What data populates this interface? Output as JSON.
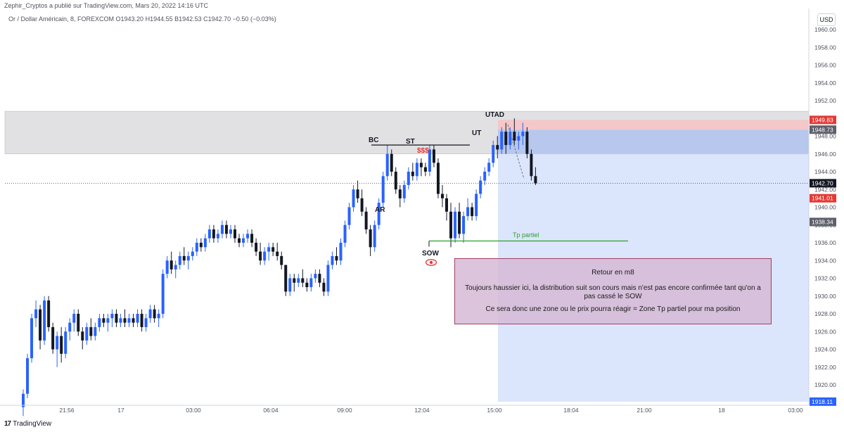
{
  "header": {
    "published_by": "Zephir_Cryptos a publié sur TradingView.com, Mars 20, 2022 14:16 UTC",
    "symbol_line": "Or / Dollar Américain, 8, FOREXCOM  O1943.20  H1944.55  B1942.53  C1942.70  −0.50 (−0.03%)",
    "currency": "USD"
  },
  "footer": {
    "logo_text": "TradingView",
    "logo_mark": "17"
  },
  "note": {
    "title": "Retour en m8",
    "line1": "Toujours haussier ici, la distribution suit son cours mais n'est pas encore confirmée tant qu'on a pas cassé le SOW",
    "line2": "Ce sera donc une zone ou le prix pourra réagir = Zone Tp partiel pour ma position"
  },
  "colors": {
    "up": "#2962ff",
    "down": "#131722",
    "resistance_zone": "#e1e1e3",
    "position_blue": "#cfdcfb",
    "stop_red": "#f4c7c9",
    "tp_line": "#2ca02c",
    "price_badge_red": "#e53935",
    "price_badge_dark": "#131722",
    "price_badge_grey": "#5d606b"
  },
  "chart_data": {
    "type": "candlestick",
    "ylim": [
      1918,
      1961.5
    ],
    "y_ticks": [
      1920,
      1922,
      1924,
      1926,
      1928,
      1930,
      1932,
      1934,
      1936,
      1938,
      1940,
      1942,
      1944,
      1946,
      1948,
      1950,
      1952,
      1954,
      1956,
      1958,
      1960
    ],
    "x_ticks": [
      "21:56",
      "17",
      "03:00",
      "06:04",
      "09:00",
      "12:04",
      "15:00",
      "18:04",
      "21:00",
      "18",
      "03:00"
    ],
    "last_price": 1942.7,
    "price_markers": [
      {
        "value": 1949.83,
        "label": "1949.83",
        "style": "red"
      },
      {
        "value": 1948.73,
        "label": "1948.73",
        "style": "grey"
      },
      {
        "value": 1942.7,
        "label": "1942.70",
        "style": "dark"
      },
      {
        "value": 1941.01,
        "label": "1941.01",
        "style": "red"
      },
      {
        "value": 1938.34,
        "label": "1938.34",
        "style": "grey"
      },
      {
        "value": 1918.11,
        "label": "1918.11",
        "style": "blue"
      }
    ],
    "zones": {
      "resistance": [
        1946.0,
        1950.8
      ],
      "position_entry": 1948.73,
      "position_stop": 1949.83,
      "position_target": 1918.11,
      "tp_partiel": 1936.2,
      "bc_level": 1947.0
    },
    "annotations": [
      {
        "text": "BC",
        "color": "#131722"
      },
      {
        "text": "ST",
        "color": "#131722"
      },
      {
        "text": "$$$",
        "color": "#e53935"
      },
      {
        "text": "UT",
        "color": "#131722"
      },
      {
        "text": "UTAD",
        "color": "#131722"
      },
      {
        "text": "AR",
        "color": "#131722"
      },
      {
        "text": "SOW",
        "color": "#131722"
      },
      {
        "text": "Tp partiel",
        "color": "#2ca02c"
      }
    ],
    "candles": [
      [
        1917.5,
        1919.5,
        1916.5,
        1919.0
      ],
      [
        1919.0,
        1923.5,
        1918.5,
        1923.0
      ],
      [
        1923.0,
        1928.0,
        1922.5,
        1927.5
      ],
      [
        1927.5,
        1929.5,
        1926.5,
        1928.5
      ],
      [
        1928.5,
        1929.0,
        1924.0,
        1925.0
      ],
      [
        1925.0,
        1930.0,
        1924.5,
        1929.5
      ],
      [
        1929.5,
        1930.0,
        1926.0,
        1926.5
      ],
      [
        1926.5,
        1927.0,
        1923.5,
        1924.0
      ],
      [
        1924.0,
        1926.0,
        1922.0,
        1925.5
      ],
      [
        1925.5,
        1926.5,
        1922.5,
        1923.5
      ],
      [
        1923.5,
        1926.5,
        1923.0,
        1926.0
      ],
      [
        1926.0,
        1927.5,
        1925.0,
        1927.0
      ],
      [
        1927.0,
        1928.5,
        1926.0,
        1928.0
      ],
      [
        1928.0,
        1928.5,
        1925.5,
        1926.0
      ],
      [
        1926.0,
        1926.5,
        1924.0,
        1925.0
      ],
      [
        1925.0,
        1927.0,
        1924.5,
        1926.5
      ],
      [
        1926.5,
        1927.5,
        1925.0,
        1925.5
      ],
      [
        1925.5,
        1927.0,
        1925.0,
        1926.5
      ],
      [
        1926.5,
        1928.0,
        1926.0,
        1927.5
      ],
      [
        1927.5,
        1928.0,
        1926.5,
        1927.0
      ],
      [
        1927.0,
        1928.0,
        1926.0,
        1927.5
      ],
      [
        1927.5,
        1928.5,
        1926.5,
        1928.0
      ],
      [
        1928.0,
        1928.5,
        1926.5,
        1927.0
      ],
      [
        1927.0,
        1928.0,
        1926.5,
        1927.5
      ],
      [
        1927.5,
        1928.5,
        1926.5,
        1927.0
      ],
      [
        1927.0,
        1928.0,
        1926.5,
        1927.5
      ],
      [
        1927.5,
        1928.0,
        1926.5,
        1927.0
      ],
      [
        1927.0,
        1928.5,
        1926.5,
        1928.0
      ],
      [
        1928.0,
        1928.5,
        1926.0,
        1926.5
      ],
      [
        1926.5,
        1928.0,
        1926.0,
        1927.5
      ],
      [
        1927.5,
        1929.0,
        1927.0,
        1928.5
      ],
      [
        1928.5,
        1929.0,
        1927.0,
        1927.5
      ],
      [
        1927.5,
        1928.5,
        1926.5,
        1928.0
      ],
      [
        1928.0,
        1933.0,
        1927.5,
        1932.5
      ],
      [
        1932.5,
        1934.5,
        1932.0,
        1934.0
      ],
      [
        1934.0,
        1935.0,
        1932.5,
        1933.0
      ],
      [
        1933.0,
        1934.0,
        1932.0,
        1933.5
      ],
      [
        1933.5,
        1935.0,
        1933.0,
        1934.5
      ],
      [
        1934.5,
        1935.5,
        1933.5,
        1934.0
      ],
      [
        1934.0,
        1935.0,
        1933.0,
        1934.5
      ],
      [
        1934.5,
        1935.5,
        1934.0,
        1935.0
      ],
      [
        1935.0,
        1936.5,
        1934.5,
        1936.0
      ],
      [
        1936.0,
        1936.5,
        1935.0,
        1935.5
      ],
      [
        1935.5,
        1937.0,
        1935.0,
        1936.5
      ],
      [
        1936.5,
        1938.0,
        1936.0,
        1937.5
      ],
      [
        1937.5,
        1938.0,
        1936.0,
        1936.5
      ],
      [
        1936.5,
        1937.5,
        1936.0,
        1937.0
      ],
      [
        1937.0,
        1938.5,
        1936.5,
        1938.0
      ],
      [
        1938.0,
        1938.5,
        1936.5,
        1937.0
      ],
      [
        1937.0,
        1938.0,
        1936.5,
        1937.5
      ],
      [
        1937.5,
        1938.0,
        1936.0,
        1936.5
      ],
      [
        1936.5,
        1937.0,
        1935.5,
        1936.0
      ],
      [
        1936.0,
        1937.0,
        1935.5,
        1936.5
      ],
      [
        1936.5,
        1937.5,
        1936.0,
        1937.0
      ],
      [
        1937.0,
        1937.5,
        1935.5,
        1936.0
      ],
      [
        1936.0,
        1936.5,
        1934.5,
        1935.0
      ],
      [
        1935.0,
        1936.0,
        1933.5,
        1934.0
      ],
      [
        1934.0,
        1935.5,
        1933.5,
        1935.0
      ],
      [
        1935.0,
        1936.0,
        1934.0,
        1935.5
      ],
      [
        1935.5,
        1936.0,
        1934.5,
        1935.0
      ],
      [
        1935.0,
        1936.0,
        1934.0,
        1934.5
      ],
      [
        1934.5,
        1935.0,
        1933.0,
        1933.5
      ],
      [
        1933.5,
        1933.5,
        1930.0,
        1930.5
      ],
      [
        1930.5,
        1932.5,
        1930.0,
        1932.0
      ],
      [
        1932.0,
        1932.5,
        1930.5,
        1931.5
      ],
      [
        1931.5,
        1932.5,
        1931.0,
        1932.0
      ],
      [
        1932.0,
        1933.0,
        1931.0,
        1931.5
      ],
      [
        1931.5,
        1932.0,
        1930.5,
        1931.0
      ],
      [
        1931.0,
        1932.5,
        1930.5,
        1932.0
      ],
      [
        1932.0,
        1933.0,
        1931.5,
        1932.5
      ],
      [
        1932.5,
        1933.0,
        1931.0,
        1931.5
      ],
      [
        1931.5,
        1932.0,
        1930.0,
        1930.5
      ],
      [
        1930.5,
        1934.0,
        1930.0,
        1933.5
      ],
      [
        1933.5,
        1935.0,
        1933.0,
        1934.5
      ],
      [
        1934.5,
        1935.5,
        1933.5,
        1934.0
      ],
      [
        1934.0,
        1936.5,
        1933.5,
        1936.0
      ],
      [
        1936.0,
        1938.5,
        1935.5,
        1938.0
      ],
      [
        1938.0,
        1940.5,
        1937.5,
        1940.0
      ],
      [
        1940.0,
        1942.5,
        1939.5,
        1942.0
      ],
      [
        1942.0,
        1943.0,
        1940.5,
        1941.0
      ],
      [
        1941.0,
        1942.0,
        1939.0,
        1939.5
      ],
      [
        1939.5,
        1940.0,
        1937.0,
        1937.5
      ],
      [
        1937.5,
        1938.0,
        1934.5,
        1935.5
      ],
      [
        1935.5,
        1938.5,
        1935.0,
        1938.0
      ],
      [
        1938.0,
        1941.0,
        1937.5,
        1940.5
      ],
      [
        1940.5,
        1944.0,
        1940.0,
        1943.5
      ],
      [
        1943.5,
        1947.0,
        1943.0,
        1946.0
      ],
      [
        1946.0,
        1946.5,
        1943.5,
        1944.0
      ],
      [
        1944.0,
        1944.5,
        1941.5,
        1942.0
      ],
      [
        1942.0,
        1942.5,
        1940.0,
        1941.0
      ],
      [
        1941.0,
        1943.0,
        1940.5,
        1942.5
      ],
      [
        1942.5,
        1944.5,
        1942.0,
        1944.0
      ],
      [
        1944.0,
        1945.0,
        1943.0,
        1943.5
      ],
      [
        1943.5,
        1945.5,
        1943.0,
        1945.0
      ],
      [
        1945.0,
        1945.5,
        1943.5,
        1944.5
      ],
      [
        1944.5,
        1945.0,
        1943.5,
        1944.0
      ],
      [
        1944.0,
        1947.0,
        1943.5,
        1946.5
      ],
      [
        1946.5,
        1947.0,
        1944.5,
        1945.0
      ],
      [
        1945.0,
        1945.5,
        1941.0,
        1941.5
      ],
      [
        1941.5,
        1942.5,
        1940.0,
        1941.0
      ],
      [
        1941.0,
        1941.5,
        1938.5,
        1939.5
      ],
      [
        1939.5,
        1940.5,
        1935.5,
        1936.5
      ],
      [
        1936.5,
        1940.0,
        1936.0,
        1939.5
      ],
      [
        1939.5,
        1940.5,
        1936.5,
        1937.0
      ],
      [
        1937.0,
        1939.5,
        1936.0,
        1939.0
      ],
      [
        1939.0,
        1941.0,
        1938.5,
        1940.0
      ],
      [
        1940.0,
        1940.5,
        1938.5,
        1939.0
      ],
      [
        1939.0,
        1942.0,
        1938.5,
        1941.5
      ],
      [
        1941.5,
        1943.5,
        1941.0,
        1943.0
      ],
      [
        1943.0,
        1944.5,
        1942.5,
        1944.0
      ],
      [
        1944.0,
        1945.5,
        1943.5,
        1945.0
      ],
      [
        1945.0,
        1947.5,
        1944.5,
        1947.0
      ],
      [
        1947.0,
        1948.0,
        1945.5,
        1946.5
      ],
      [
        1946.5,
        1949.0,
        1946.0,
        1948.5
      ],
      [
        1948.5,
        1949.5,
        1946.0,
        1947.0
      ],
      [
        1947.0,
        1949.0,
        1946.5,
        1948.5
      ],
      [
        1948.5,
        1950.0,
        1947.0,
        1947.5
      ],
      [
        1947.5,
        1948.5,
        1946.5,
        1948.0
      ],
      [
        1948.0,
        1949.5,
        1947.0,
        1948.5
      ],
      [
        1948.5,
        1949.0,
        1945.5,
        1946.0
      ],
      [
        1946.0,
        1946.5,
        1943.0,
        1943.5
      ],
      [
        1943.5,
        1944.5,
        1942.5,
        1942.7
      ]
    ]
  }
}
